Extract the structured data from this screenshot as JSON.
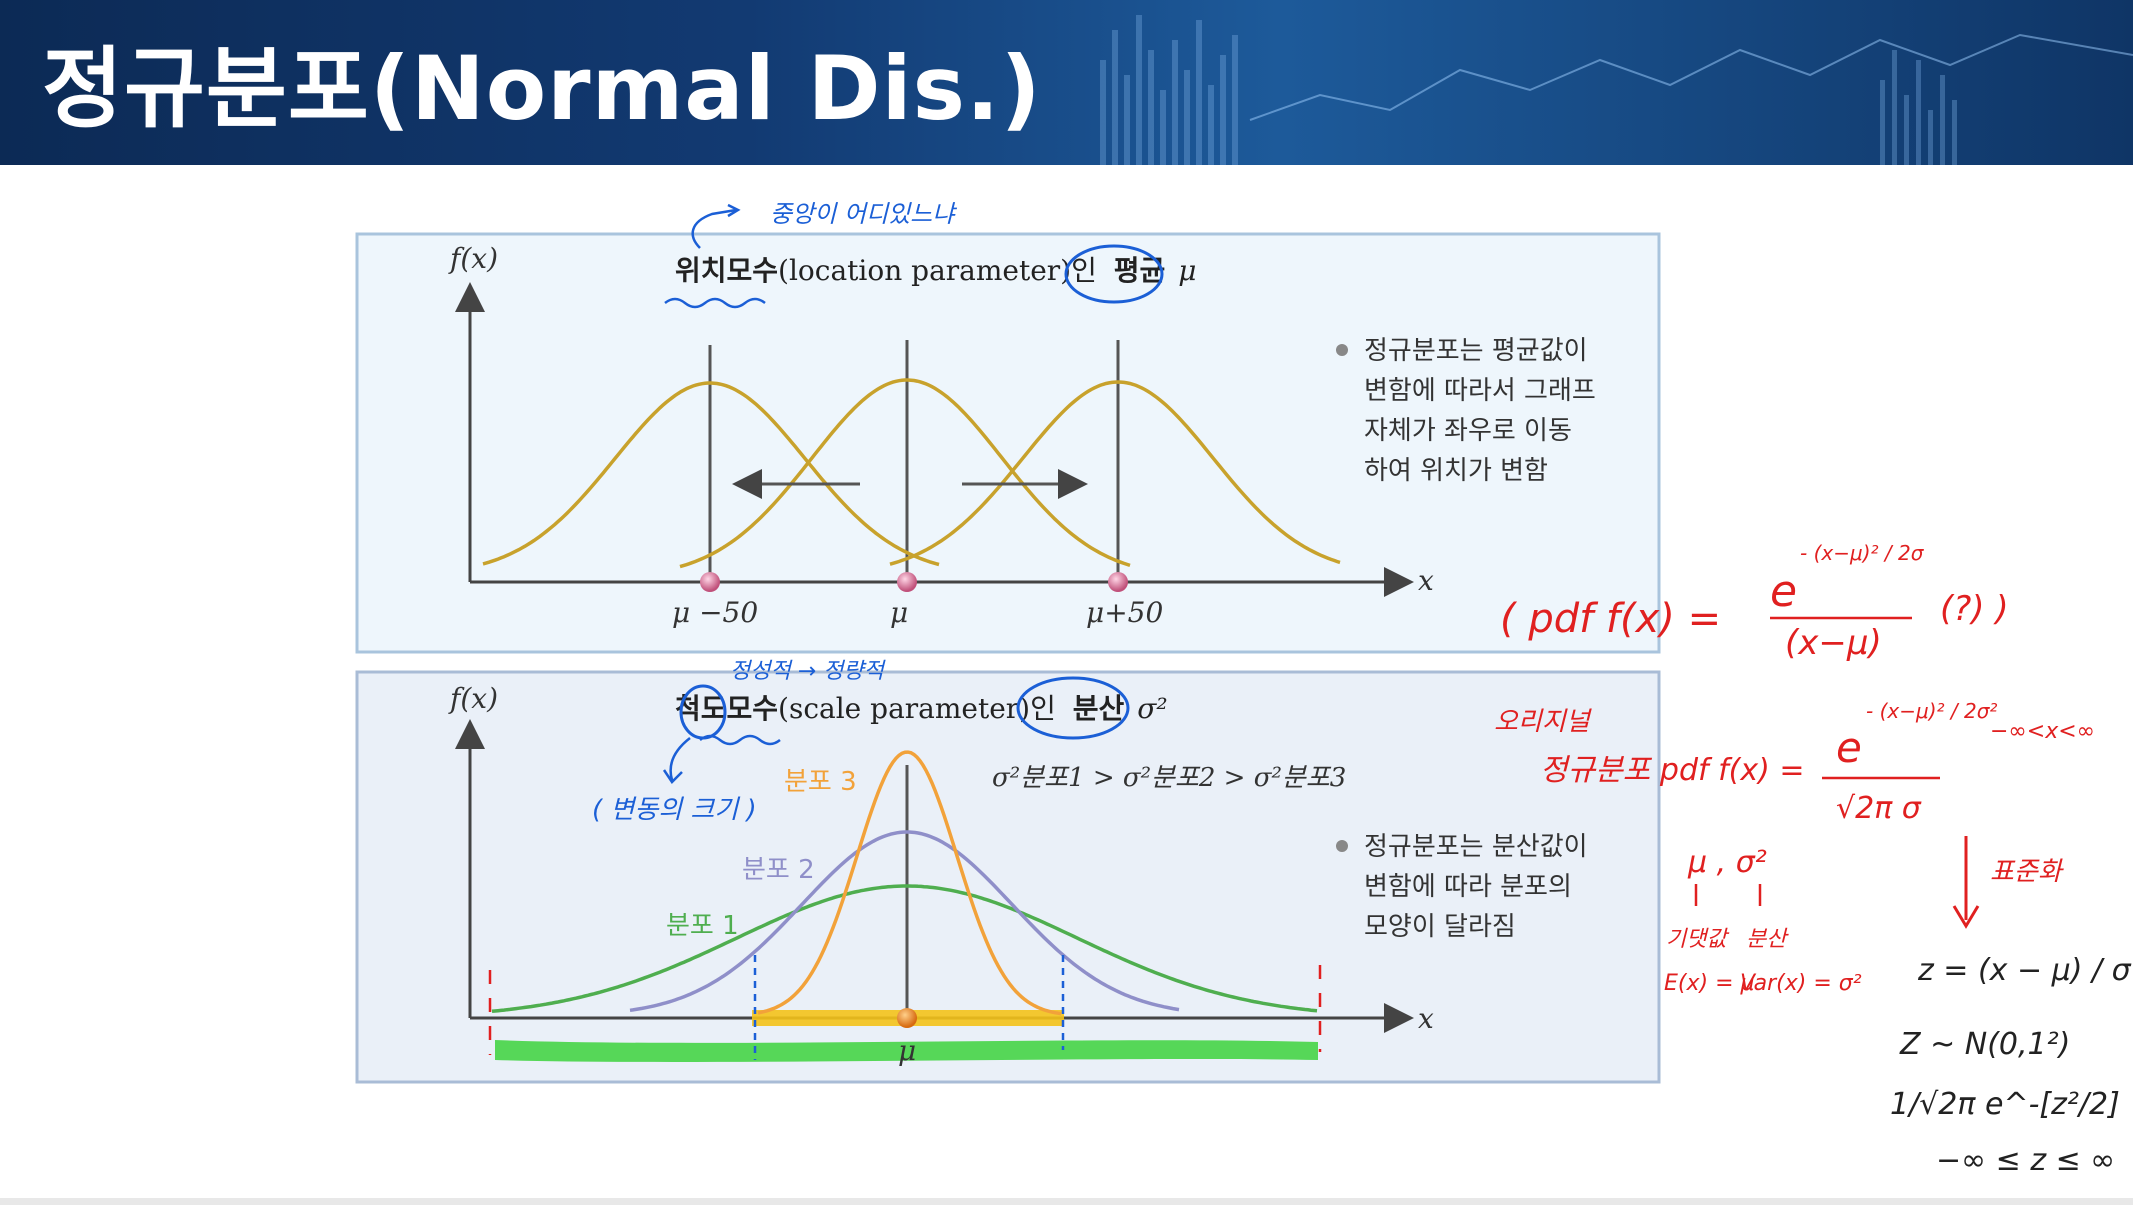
{
  "slide_title": "정규분포(Normal Dis.)",
  "figure_top": {
    "axis_y": "f(x)",
    "axis_x": "x",
    "heading_prefix": "위치모수",
    "heading_paren": "(location parameter)인",
    "heading_term": "평균",
    "heading_symbol": "μ",
    "tick_left": "μ −50",
    "tick_mid": "μ",
    "tick_right": "μ+50",
    "note_lines": [
      "정규분포는 평균값이",
      "변함에 따라서 그래프",
      "자체가 좌우로 이동",
      "하여 위치가 변함"
    ]
  },
  "figure_bottom": {
    "axis_y": "f(x)",
    "axis_x": "x",
    "heading_prefix": "척도모수",
    "heading_paren": "(scale parameter)인",
    "heading_term": "분산",
    "heading_symbol": "σ²",
    "tick_mid": "μ",
    "series_labels": [
      "분포 1",
      "분포 2",
      "분포 3"
    ],
    "relation": "σ²분포1 > σ²분포2 > σ²분포3",
    "note_lines": [
      "정규분포는 분산값이",
      "변함에 따라 분포의",
      "모양이 달라짐"
    ]
  },
  "annotations_blue": {
    "center_question": "중앙이 어디있느냐",
    "scale_note": "정성적 → 정량적",
    "variation_note": "( 변동의 크기 )"
  },
  "annotations_red": {
    "pdf_first": "( pdf  f(x) =",
    "pdf_first_num": "e",
    "pdf_first_exp": "- (x−μ)² / 2σ",
    "pdf_first_den": "(x−μ)",
    "pdf_first_tail": "(?) )",
    "original_label": "오리지널",
    "original_pdf": "정규분포 pdf  f(x) =",
    "original_num": "e",
    "original_exp": "- (x−μ)² / 2σ²",
    "original_den": "√2π σ",
    "original_range": "−∞<x<∞",
    "params": "μ , σ²",
    "mean_label": "기댓값",
    "var_label": "분산",
    "mean_expr": "E(x) = μ",
    "var_expr": "Var(x) = σ²",
    "standardize": "표준화"
  },
  "annotations_black": {
    "z_formula": "z = (x − μ) / σ",
    "z_dist": "Z ~ N(0,1²)",
    "z_pdf": "1/√2π e^-[z²/2]",
    "z_range": "−∞ ≤ z ≤ ∞"
  },
  "colors": {
    "header": "#123a72",
    "panel_bg": "#eef6fc",
    "panel_bg_bottom": "#eaf0f8",
    "curve_gold": "#c8a22c",
    "curve_green": "#4fae4f",
    "curve_purple": "#8f8fc9",
    "curve_orange": "#f2a23a",
    "ink_blue": "#1b5fd6",
    "ink_red": "#e02020"
  }
}
